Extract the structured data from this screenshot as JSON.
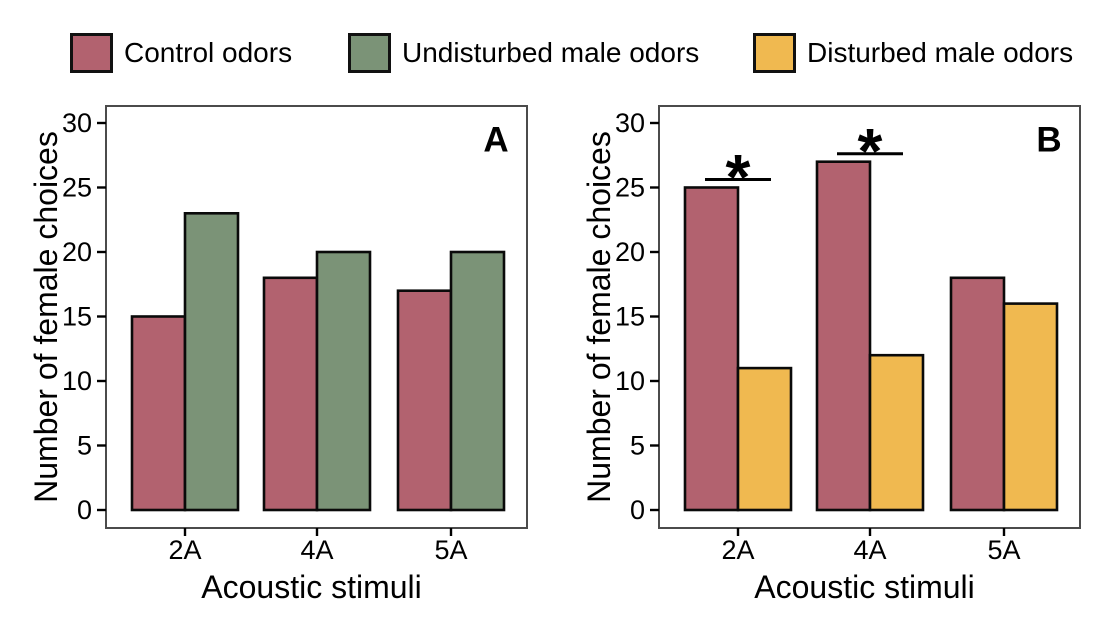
{
  "legend": {
    "items": [
      {
        "label": "Control odors",
        "color": "#b2626f"
      },
      {
        "label": "Undisturbed male odors",
        "color": "#7b9377"
      },
      {
        "label": "Disturbed male odors",
        "color": "#f0b950"
      }
    ]
  },
  "chart_data": [
    {
      "type": "bar",
      "panel_label": "A",
      "categories": [
        "2A",
        "4A",
        "5A"
      ],
      "series": [
        {
          "name": "Control odors",
          "color": "#b2626f",
          "values": [
            15,
            18,
            17
          ]
        },
        {
          "name": "Undisturbed male odors",
          "color": "#7b9377",
          "values": [
            23,
            20,
            20
          ]
        }
      ],
      "xlabel": "Acoustic stimuli",
      "ylabel": "Number of female choices",
      "ylim": [
        0,
        30
      ],
      "yticks": [
        0,
        5,
        10,
        15,
        20,
        25,
        30
      ],
      "grid": false,
      "legend_position": "top",
      "significance": []
    },
    {
      "type": "bar",
      "panel_label": "B",
      "categories": [
        "2A",
        "4A",
        "5A"
      ],
      "series": [
        {
          "name": "Control odors",
          "color": "#b2626f",
          "values": [
            25,
            27,
            18
          ]
        },
        {
          "name": "Disturbed male odors",
          "color": "#f0b950",
          "values": [
            11,
            12,
            16
          ]
        }
      ],
      "xlabel": "Acoustic stimuli",
      "ylabel": "Number of female choices",
      "ylim": [
        0,
        30
      ],
      "yticks": [
        0,
        5,
        10,
        15,
        20,
        25,
        30
      ],
      "grid": false,
      "legend_position": "top",
      "significance": [
        {
          "category": "2A",
          "label": "*"
        },
        {
          "category": "4A",
          "label": "*"
        }
      ]
    }
  ]
}
